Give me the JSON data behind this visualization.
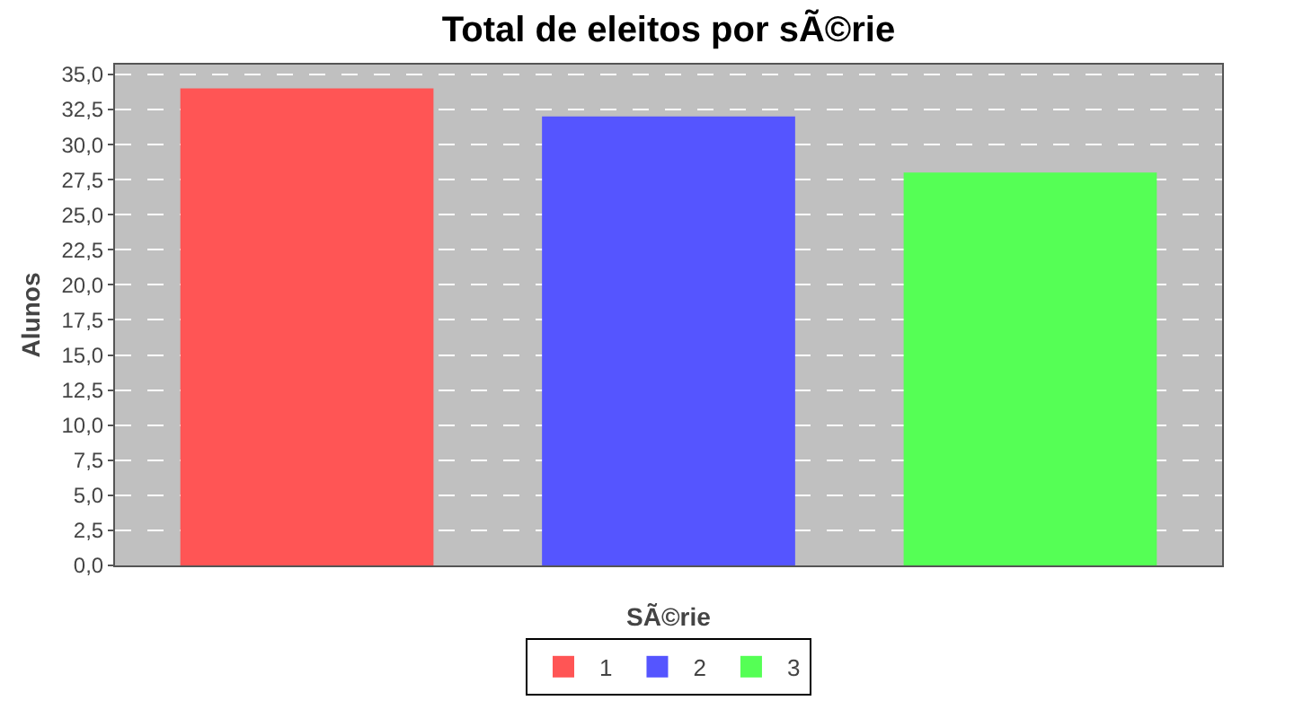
{
  "chart_data": {
    "type": "bar",
    "title": "Total de eleitos por sÃ©rie",
    "xlabel": "SÃ©rie",
    "ylabel": "Alunos",
    "categories": [
      null
    ],
    "series": [
      {
        "name": "1",
        "color": "#ff5555",
        "values": [
          34
        ]
      },
      {
        "name": "2",
        "color": "#5555ff",
        "values": [
          32
        ]
      },
      {
        "name": "3",
        "color": "#55ff55",
        "values": [
          28
        ]
      }
    ],
    "ylim": [
      0,
      35.7
    ],
    "yticks": [
      {
        "value": 0,
        "label": "0,0"
      },
      {
        "value": 2.5,
        "label": "2,5"
      },
      {
        "value": 5,
        "label": "5,0"
      },
      {
        "value": 7.5,
        "label": "7,5"
      },
      {
        "value": 10,
        "label": "10,0"
      },
      {
        "value": 12.5,
        "label": "12,5"
      },
      {
        "value": 15,
        "label": "15,0"
      },
      {
        "value": 17.5,
        "label": "17,5"
      },
      {
        "value": 20,
        "label": "20,0"
      },
      {
        "value": 22.5,
        "label": "22,5"
      },
      {
        "value": 25,
        "label": "25,0"
      },
      {
        "value": 27.5,
        "label": "27,5"
      },
      {
        "value": 30,
        "label": "30,0"
      },
      {
        "value": 32.5,
        "label": "32,5"
      },
      {
        "value": 35,
        "label": "35,0"
      }
    ],
    "grid": "y",
    "legend": "bottom"
  }
}
